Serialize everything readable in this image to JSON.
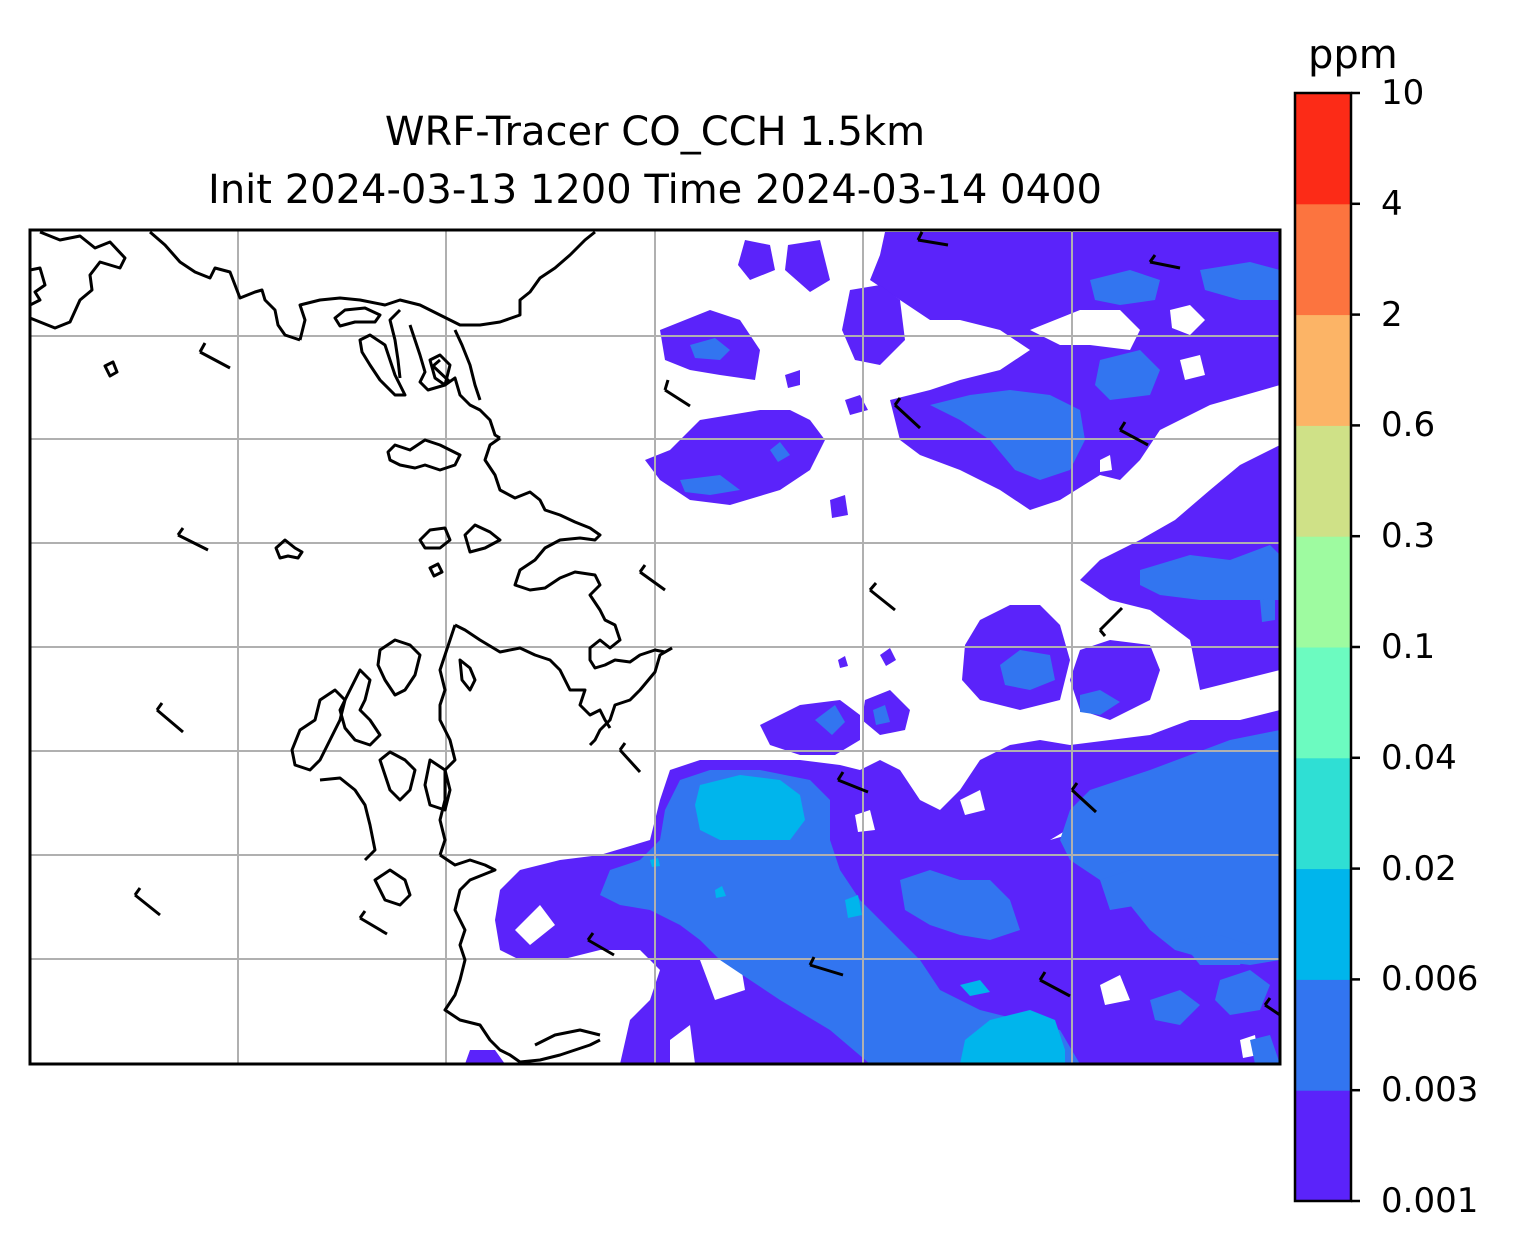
{
  "title": {
    "line1": "WRF-Tracer CO_CCH 1.5km",
    "line2": "Init 2024-03-13 1200 Time 2024-03-14 0400"
  },
  "colorbar": {
    "unit": "ppm",
    "levels": [
      "0.001",
      "0.003",
      "0.006",
      "0.02",
      "0.04",
      "0.1",
      "0.3",
      "0.6",
      "2",
      "4",
      "10"
    ],
    "colors": [
      "#5b23fa",
      "#3275f0",
      "#00b5ec",
      "#2fdfd4",
      "#6cfbc0",
      "#9efba0",
      "#cfe187",
      "#fcb466",
      "#fc743f",
      "#fc2b17"
    ]
  },
  "map": {
    "coastline_color": "#000000",
    "gridline_color": "#b0b0b0"
  }
}
